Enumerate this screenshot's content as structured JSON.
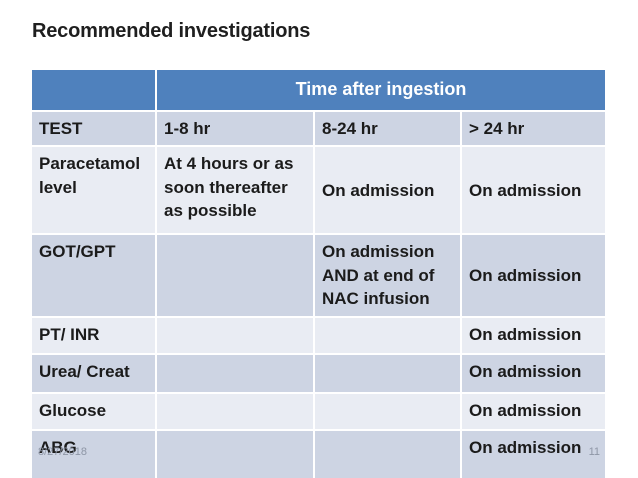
{
  "slide": {
    "title": "Recommended investigations",
    "footer": {
      "date": "8/27/2018",
      "slide_number": "11"
    }
  },
  "table": {
    "header": {
      "corner": "",
      "time_after_ingestion": "Time after ingestion"
    },
    "rows": [
      [
        "TEST",
        "1-8 hr",
        "8-24 hr",
        "> 24 hr"
      ],
      [
        "Paracetamol level",
        "At 4 hours or as\nsoon thereafter\nas possible",
        "On admission",
        "On admission"
      ],
      [
        "GOT/GPT",
        "",
        "On admission\nAND at end of\nNAC infusion",
        "On admission"
      ],
      [
        "PT/ INR",
        "",
        "",
        "On admission"
      ],
      [
        "Urea/ Creat",
        "",
        "",
        "On admission"
      ],
      [
        "Glucose",
        "",
        "",
        "On admission"
      ],
      [
        "ABG",
        "",
        "",
        "On admission"
      ]
    ]
  },
  "colors": {
    "header_blue": "#4f81bd",
    "band_dark": "#cdd4e3",
    "band_light": "#e9ecf3",
    "cell_text": "#1b1b1b",
    "footer_gray": "#8e96a6"
  }
}
